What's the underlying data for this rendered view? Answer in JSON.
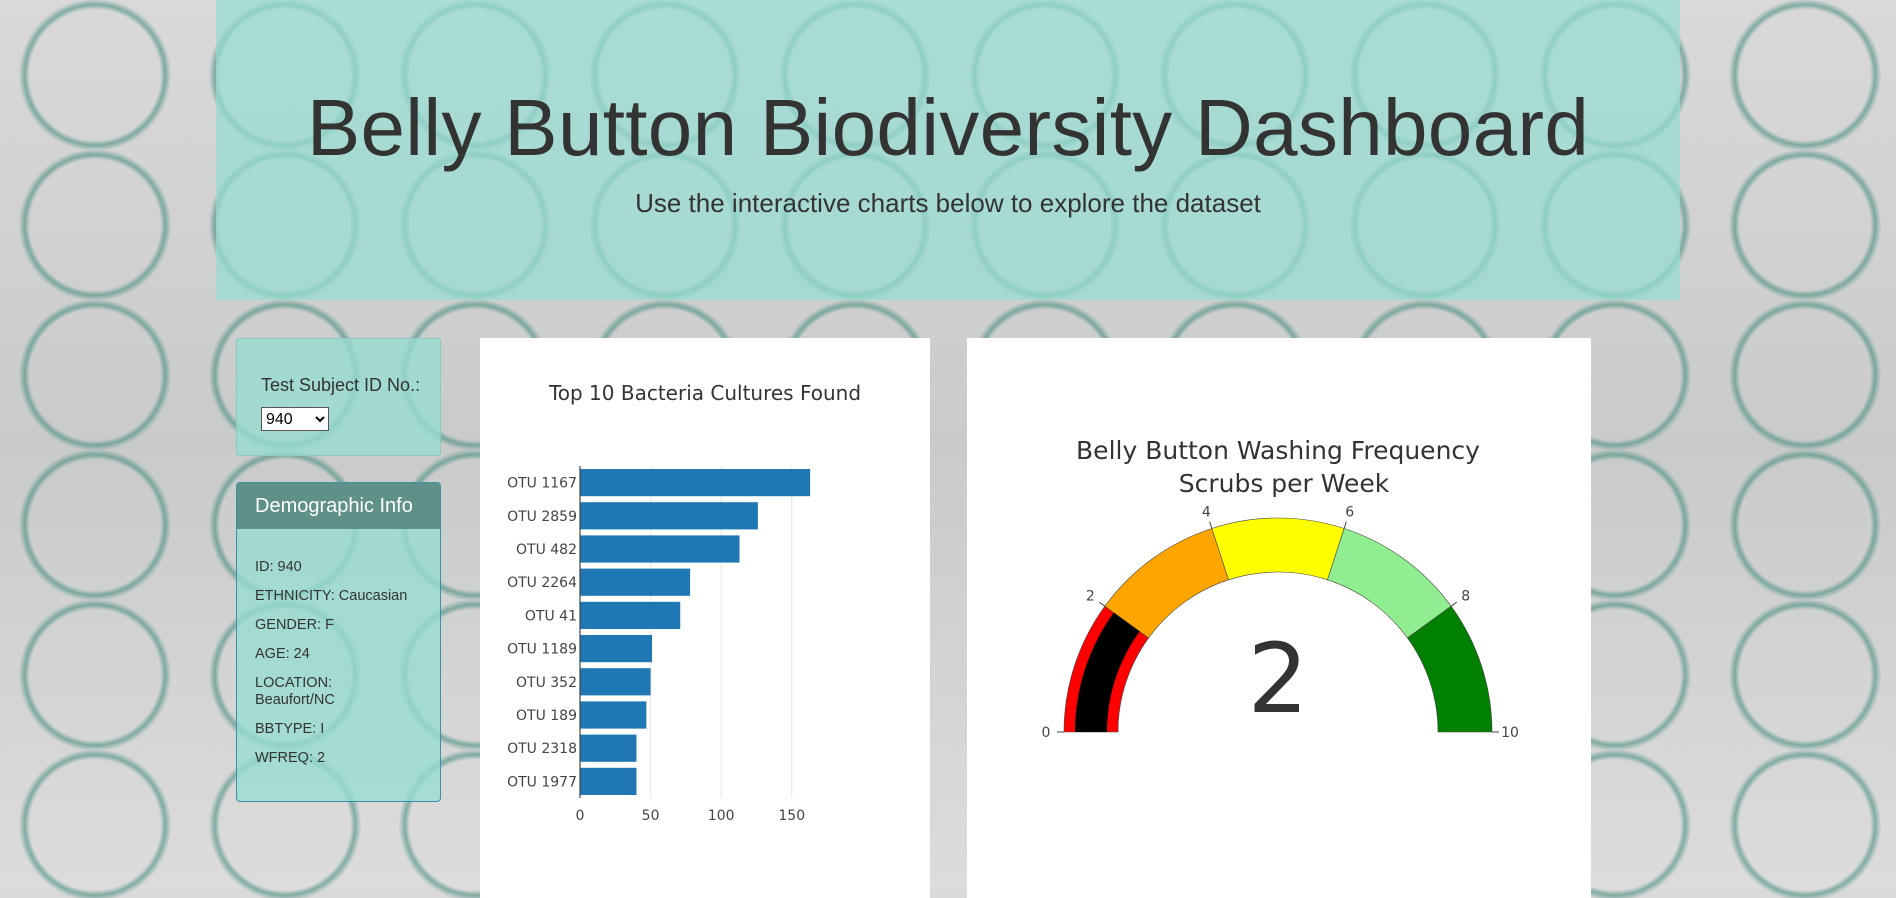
{
  "header": {
    "title": "Belly Button Biodiversity Dashboard",
    "subtitle": "Use the interactive charts below to explore the dataset"
  },
  "selector": {
    "label": "Test Subject ID No.:",
    "selected": "940"
  },
  "demographics": {
    "heading": "Demographic Info",
    "rows": [
      "ID: 940",
      "ETHNICITY: Caucasian",
      "GENDER: F",
      "AGE: 24",
      "LOCATION: Beaufort/NC",
      "BBTYPE: I",
      "WFREQ: 2"
    ]
  },
  "chart_data": [
    {
      "type": "bar",
      "orientation": "horizontal",
      "title": "Top 10 Bacteria Cultures Found",
      "categories": [
        "OTU 1167",
        "OTU 2859",
        "OTU 482",
        "OTU 2264",
        "OTU 41",
        "OTU 1189",
        "OTU 352",
        "OTU 189",
        "OTU 2318",
        "OTU 1977"
      ],
      "values": [
        163,
        126,
        113,
        78,
        71,
        51,
        50,
        47,
        40,
        40
      ],
      "xticks": [
        0,
        50,
        100,
        150
      ],
      "xlim": [
        0,
        170
      ],
      "color": "#1f77b4",
      "grid": true
    },
    {
      "type": "gauge",
      "title": "Belly Button Washing Frequency",
      "subtitle": "Scrubs per Week",
      "value": 2,
      "range": [
        0,
        10
      ],
      "ticks": [
        0,
        2,
        4,
        6,
        8,
        10
      ],
      "steps": [
        {
          "range": [
            0,
            2
          ],
          "color": "#ff0000"
        },
        {
          "range": [
            2,
            4
          ],
          "color": "#ffa500"
        },
        {
          "range": [
            4,
            6
          ],
          "color": "#ffff00"
        },
        {
          "range": [
            6,
            8
          ],
          "color": "#90ee90"
        },
        {
          "range": [
            8,
            10
          ],
          "color": "#008000"
        }
      ],
      "bar_color": "#000000"
    }
  ]
}
